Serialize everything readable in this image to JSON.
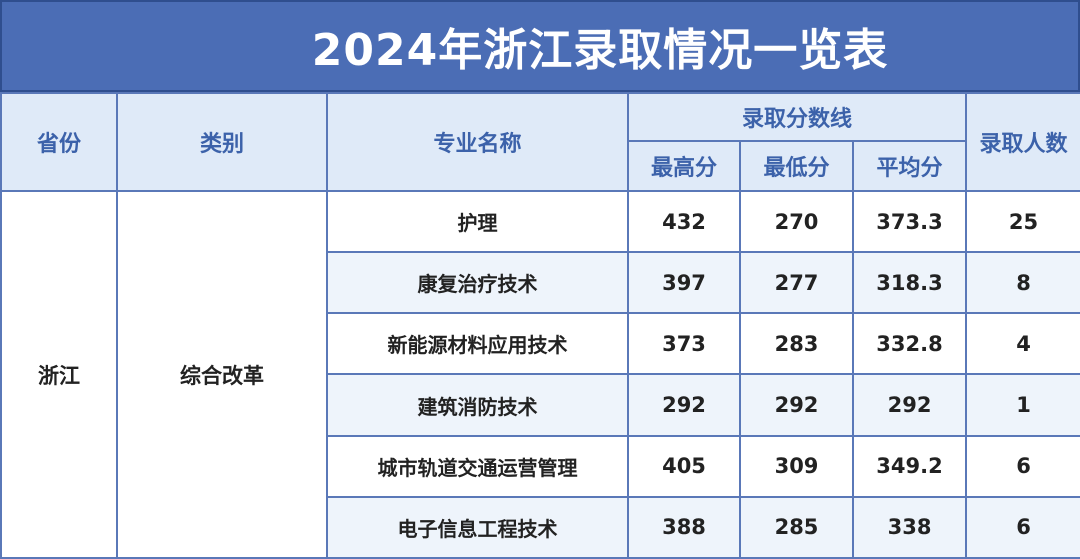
{
  "title": "2024年浙江录取情况一览表",
  "header": {
    "province": "省份",
    "category": "类别",
    "major": "专业名称",
    "score_line": "录取分数线",
    "max": "最高分",
    "min": "最低分",
    "avg": "平均分",
    "admitted": "录取人数"
  },
  "province_value": "浙江",
  "category_value": "综合改革",
  "rows": [
    {
      "major": "护理",
      "max": "432",
      "min": "270",
      "avg": "373.3",
      "count": "25"
    },
    {
      "major": "康复治疗技术",
      "max": "397",
      "min": "277",
      "avg": "318.3",
      "count": "8"
    },
    {
      "major": "新能源材料应用技术",
      "max": "373",
      "min": "283",
      "avg": "332.8",
      "count": "4"
    },
    {
      "major": "建筑消防技术",
      "max": "292",
      "min": "292",
      "avg": "292",
      "count": "1"
    },
    {
      "major": "城市轨道交通运营管理",
      "max": "405",
      "min": "309",
      "avg": "349.2",
      "count": "6"
    },
    {
      "major": "电子信息工程技术",
      "max": "388",
      "min": "285",
      "avg": "338",
      "count": "6"
    }
  ],
  "colors": {
    "title_bg": "#4b6db5",
    "header_bg": "#dfeaf8",
    "header_text": "#3c62aa",
    "border": "#5a78b8",
    "alt_row_bg": "#eef4fb"
  }
}
